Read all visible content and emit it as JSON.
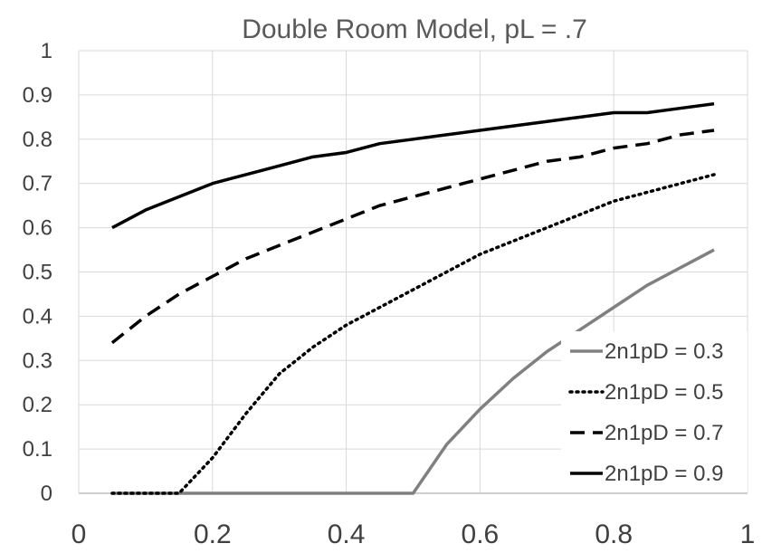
{
  "chart_data": {
    "type": "line",
    "title": "Double Room Model, pL = .7",
    "xlabel": "",
    "ylabel": "",
    "xlim": [
      0,
      1
    ],
    "ylim": [
      0,
      1
    ],
    "x_ticks": [
      "0",
      "0.2",
      "0.4",
      "0.6",
      "0.8",
      "1"
    ],
    "y_ticks": [
      "0",
      "0.1",
      "0.2",
      "0.3",
      "0.4",
      "0.5",
      "0.6",
      "0.7",
      "0.8",
      "0.9",
      "1"
    ],
    "grid": true,
    "legend_position": "bottom-right",
    "x": [
      0.05,
      0.1,
      0.15,
      0.2,
      0.25,
      0.3,
      0.35,
      0.4,
      0.45,
      0.5,
      0.55,
      0.6,
      0.65,
      0.7,
      0.75,
      0.8,
      0.85,
      0.9,
      0.95
    ],
    "series": [
      {
        "name": "2n1pD = 0.3",
        "color": "#808080",
        "dash": "solid",
        "values": [
          0,
          0,
          0,
          0,
          0,
          0,
          0,
          0,
          0,
          0,
          0.11,
          0.19,
          0.26,
          0.32,
          0.37,
          0.42,
          0.47,
          0.51,
          0.55
        ]
      },
      {
        "name": "2n1pD = 0.5",
        "color": "#000000",
        "dash": "dotted",
        "values": [
          0,
          0,
          0,
          0.08,
          0.18,
          0.27,
          0.33,
          0.38,
          0.42,
          0.46,
          0.5,
          0.54,
          0.57,
          0.6,
          0.63,
          0.66,
          0.68,
          0.7,
          0.72
        ]
      },
      {
        "name": "2n1pD = 0.7",
        "color": "#000000",
        "dash": "dashed",
        "values": [
          0.34,
          0.4,
          0.45,
          0.49,
          0.53,
          0.56,
          0.59,
          0.62,
          0.65,
          0.67,
          0.69,
          0.71,
          0.73,
          0.75,
          0.76,
          0.78,
          0.79,
          0.81,
          0.82
        ]
      },
      {
        "name": "2n1pD = 0.9",
        "color": "#000000",
        "dash": "solid",
        "values": [
          0.6,
          0.64,
          0.67,
          0.7,
          0.72,
          0.74,
          0.76,
          0.77,
          0.79,
          0.8,
          0.81,
          0.82,
          0.83,
          0.84,
          0.85,
          0.86,
          0.86,
          0.87,
          0.88
        ]
      }
    ]
  }
}
